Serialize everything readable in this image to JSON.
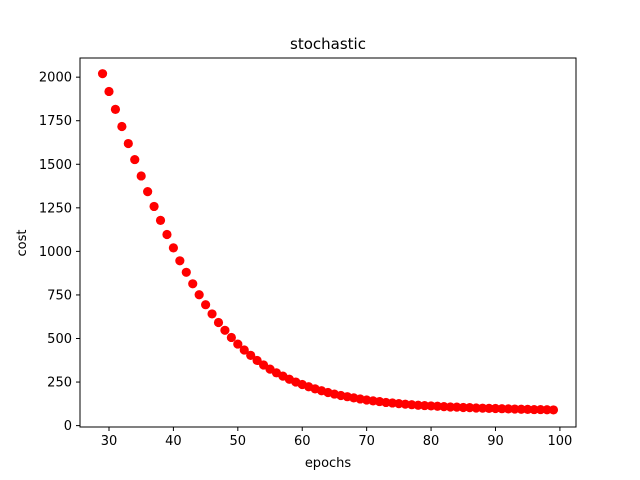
{
  "chart_data": {
    "type": "scatter",
    "title": "stochastic",
    "xlabel": "epochs",
    "ylabel": "cost",
    "xlim": [
      25.5,
      102.5
    ],
    "ylim": [
      -8,
      2110
    ],
    "xticks": [
      30,
      40,
      50,
      60,
      70,
      80,
      90,
      100
    ],
    "yticks": [
      0,
      250,
      500,
      750,
      1000,
      1250,
      1500,
      1750,
      2000
    ],
    "grid": false,
    "marker_color": "#ff0000",
    "series": [
      {
        "x": [
          29,
          30,
          31,
          32,
          33,
          34,
          35,
          36,
          37,
          38,
          39,
          40,
          41,
          42,
          43,
          44,
          45,
          46,
          47,
          48,
          49,
          50,
          51,
          52,
          53,
          54,
          55,
          56,
          57,
          58,
          59,
          60,
          61,
          62,
          63,
          64,
          65,
          66,
          67,
          68,
          69,
          70,
          71,
          72,
          73,
          74,
          75,
          76,
          77,
          78,
          79,
          80,
          81,
          82,
          83,
          84,
          85,
          86,
          87,
          88,
          89,
          90,
          91,
          92,
          93,
          94,
          95,
          96,
          97,
          98,
          99
        ],
        "y": [
          2020,
          1918,
          1815,
          1717,
          1619,
          1527,
          1433,
          1343,
          1258,
          1178,
          1097,
          1020,
          946,
          880,
          814,
          751,
          694,
          641,
          592,
          547,
          506,
          468,
          434,
          403,
          374,
          348,
          324,
          303,
          284,
          266,
          250,
          236,
          223,
          211,
          200,
          190,
          181,
          173,
          166,
          159,
          153,
          147,
          142,
          138,
          133,
          130,
          126,
          123,
          120,
          117,
          115,
          113,
          111,
          109,
          107,
          106,
          104,
          103,
          101,
          100,
          99,
          98,
          97,
          96,
          95,
          94,
          93,
          92,
          92,
          91,
          90
        ]
      }
    ]
  }
}
